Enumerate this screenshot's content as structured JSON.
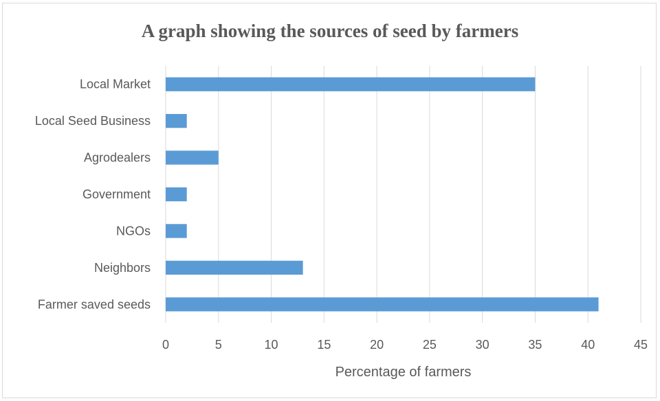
{
  "chart_data": {
    "type": "bar",
    "orientation": "horizontal",
    "title": "A graph showing the sources of seed by farmers",
    "xlabel": "Percentage of farmers",
    "ylabel": "",
    "categories": [
      "Local Market",
      "Local Seed Business",
      "Agrodealers",
      "Government",
      "NGOs",
      "Neighbors",
      "Farmer saved seeds"
    ],
    "values": [
      35,
      2,
      5,
      2,
      2,
      13,
      41
    ],
    "xlim": [
      0,
      45
    ],
    "xticks": [
      0,
      5,
      10,
      15,
      20,
      25,
      30,
      35,
      40,
      45
    ],
    "grid": true,
    "legend": "none",
    "bar_color": "#5b9bd5",
    "grid_color": "#d9d9d9",
    "text_color": "#595959"
  }
}
